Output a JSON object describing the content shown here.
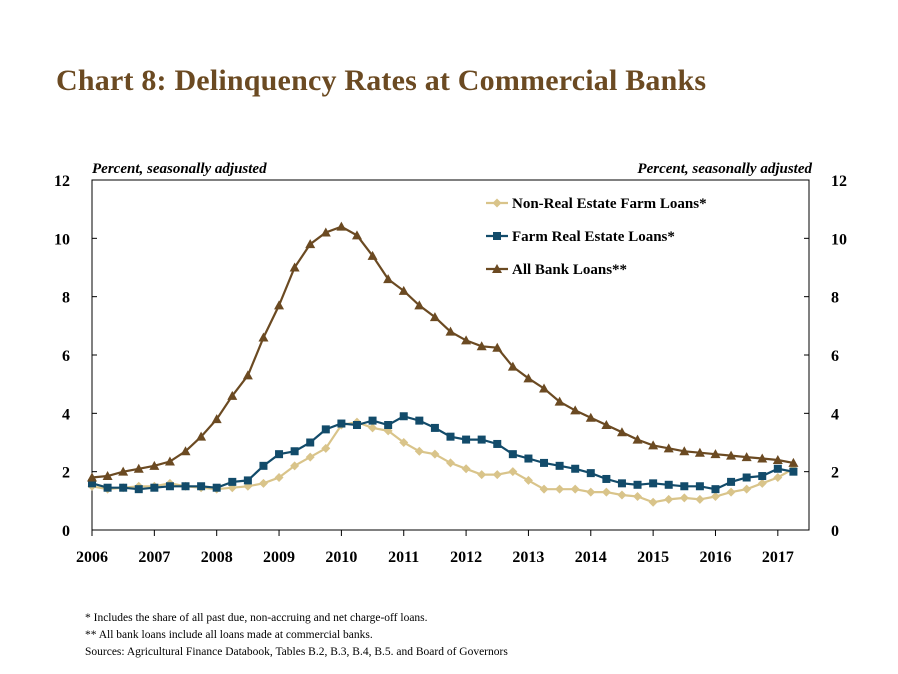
{
  "title": "Chart 8: Delinquency Rates at Commercial Banks",
  "chart_data": {
    "type": "line",
    "title": "Chart 8: Delinquency Rates at Commercial Banks",
    "ylabel_left": "Percent, seasonally adjusted",
    "ylabel_right": "Percent, seasonally adjusted",
    "ylim": [
      0,
      12
    ],
    "yticks": [
      0,
      2,
      4,
      6,
      8,
      10,
      12
    ],
    "xlim": [
      2006,
      2017.5
    ],
    "xticks": [
      2006,
      2007,
      2008,
      2009,
      2010,
      2011,
      2012,
      2013,
      2014,
      2015,
      2016,
      2017
    ],
    "grid": false,
    "legend_position": "top-right",
    "series": [
      {
        "name": "Non-Real Estate Farm Loans*",
        "color": "#D9C48A",
        "marker": "diamond",
        "x": [
          2006.0,
          2006.25,
          2006.5,
          2006.75,
          2007.0,
          2007.25,
          2007.5,
          2007.75,
          2008.0,
          2008.25,
          2008.5,
          2008.75,
          2009.0,
          2009.25,
          2009.5,
          2009.75,
          2010.0,
          2010.25,
          2010.5,
          2010.75,
          2011.0,
          2011.25,
          2011.5,
          2011.75,
          2012.0,
          2012.25,
          2012.5,
          2012.75,
          2013.0,
          2013.25,
          2013.5,
          2013.75,
          2014.0,
          2014.25,
          2014.5,
          2014.75,
          2015.0,
          2015.25,
          2015.5,
          2015.75,
          2016.0,
          2016.25,
          2016.5,
          2016.75,
          2017.0,
          2017.25
        ],
        "values": [
          1.5,
          1.4,
          1.45,
          1.5,
          1.5,
          1.6,
          1.5,
          1.45,
          1.4,
          1.45,
          1.5,
          1.6,
          1.8,
          2.2,
          2.5,
          2.8,
          3.6,
          3.7,
          3.5,
          3.4,
          3.0,
          2.7,
          2.6,
          2.3,
          2.1,
          1.9,
          1.9,
          2.0,
          1.7,
          1.4,
          1.4,
          1.4,
          1.3,
          1.3,
          1.2,
          1.15,
          0.95,
          1.05,
          1.1,
          1.05,
          1.15,
          1.3,
          1.4,
          1.6,
          1.8,
          2.1
        ]
      },
      {
        "name": "Farm Real Estate Loans*",
        "color": "#124B6A",
        "marker": "square",
        "x": [
          2006.0,
          2006.25,
          2006.5,
          2006.75,
          2007.0,
          2007.25,
          2007.5,
          2007.75,
          2008.0,
          2008.25,
          2008.5,
          2008.75,
          2009.0,
          2009.25,
          2009.5,
          2009.75,
          2010.0,
          2010.25,
          2010.5,
          2010.75,
          2011.0,
          2011.25,
          2011.5,
          2011.75,
          2012.0,
          2012.25,
          2012.5,
          2012.75,
          2013.0,
          2013.25,
          2013.5,
          2013.75,
          2014.0,
          2014.25,
          2014.5,
          2014.75,
          2015.0,
          2015.25,
          2015.5,
          2015.75,
          2016.0,
          2016.25,
          2016.5,
          2016.75,
          2017.0,
          2017.25
        ],
        "values": [
          1.6,
          1.45,
          1.45,
          1.4,
          1.45,
          1.5,
          1.5,
          1.5,
          1.45,
          1.65,
          1.7,
          2.2,
          2.6,
          2.7,
          3.0,
          3.45,
          3.65,
          3.6,
          3.75,
          3.6,
          3.9,
          3.75,
          3.5,
          3.2,
          3.1,
          3.1,
          2.95,
          2.6,
          2.45,
          2.3,
          2.2,
          2.1,
          1.95,
          1.75,
          1.6,
          1.55,
          1.6,
          1.55,
          1.5,
          1.5,
          1.4,
          1.65,
          1.8,
          1.85,
          2.1,
          2.0
        ]
      },
      {
        "name": "All Bank Loans**",
        "color": "#6B4A22",
        "marker": "triangle",
        "x": [
          2006.0,
          2006.25,
          2006.5,
          2006.75,
          2007.0,
          2007.25,
          2007.5,
          2007.75,
          2008.0,
          2008.25,
          2008.5,
          2008.75,
          2009.0,
          2009.25,
          2009.5,
          2009.75,
          2010.0,
          2010.25,
          2010.5,
          2010.75,
          2011.0,
          2011.25,
          2011.5,
          2011.75,
          2012.0,
          2012.25,
          2012.5,
          2012.75,
          2013.0,
          2013.25,
          2013.5,
          2013.75,
          2014.0,
          2014.25,
          2014.5,
          2014.75,
          2015.0,
          2015.25,
          2015.5,
          2015.75,
          2016.0,
          2016.25,
          2016.5,
          2016.75,
          2017.0,
          2017.25
        ],
        "values": [
          1.8,
          1.85,
          2.0,
          2.1,
          2.2,
          2.35,
          2.7,
          3.2,
          3.8,
          4.6,
          5.3,
          6.6,
          7.7,
          9.0,
          9.8,
          10.2,
          10.4,
          10.1,
          9.4,
          8.6,
          8.2,
          7.7,
          7.3,
          6.8,
          6.5,
          6.3,
          6.25,
          5.6,
          5.2,
          4.85,
          4.4,
          4.1,
          3.85,
          3.6,
          3.35,
          3.1,
          2.9,
          2.8,
          2.7,
          2.65,
          2.6,
          2.55,
          2.5,
          2.45,
          2.4,
          2.3
        ]
      }
    ]
  },
  "notes": [
    "* Includes the share of  all past due, non-accruing and net charge-off loans.",
    "** All bank loans include all loans made at commercial banks.",
    "Sources: Agricultural Finance Databook, Tables B.2, B.3, B.4, B.5. and Board of  Governors"
  ]
}
